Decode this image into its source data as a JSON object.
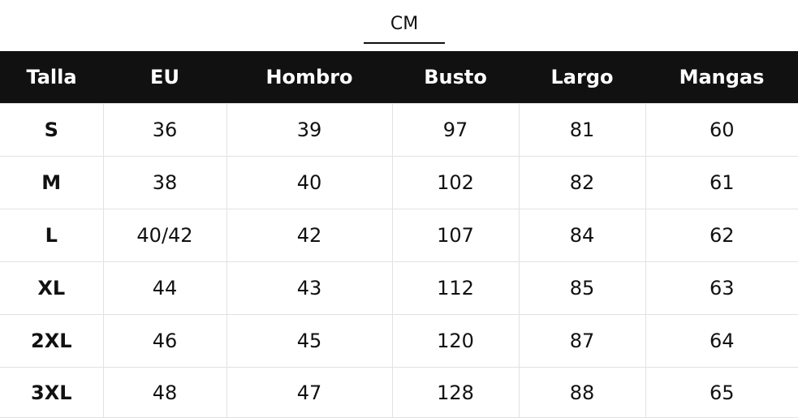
{
  "unit_tab": "CM",
  "columns": [
    "Talla",
    "EU",
    "Hombro",
    "Busto",
    "Largo",
    "Mangas"
  ],
  "rows": [
    [
      "S",
      "36",
      "39",
      "97",
      "81",
      "60"
    ],
    [
      "M",
      "38",
      "40",
      "102",
      "82",
      "61"
    ],
    [
      "L",
      "40/42",
      "42",
      "107",
      "84",
      "62"
    ],
    [
      "XL",
      "44",
      "43",
      "112",
      "85",
      "63"
    ],
    [
      "2XL",
      "46",
      "45",
      "120",
      "87",
      "64"
    ],
    [
      "3XL",
      "48",
      "47",
      "128",
      "88",
      "65"
    ]
  ],
  "colors": {
    "header_bg": "#111111",
    "header_text": "#ffffff",
    "border": "#e2e2e2"
  }
}
